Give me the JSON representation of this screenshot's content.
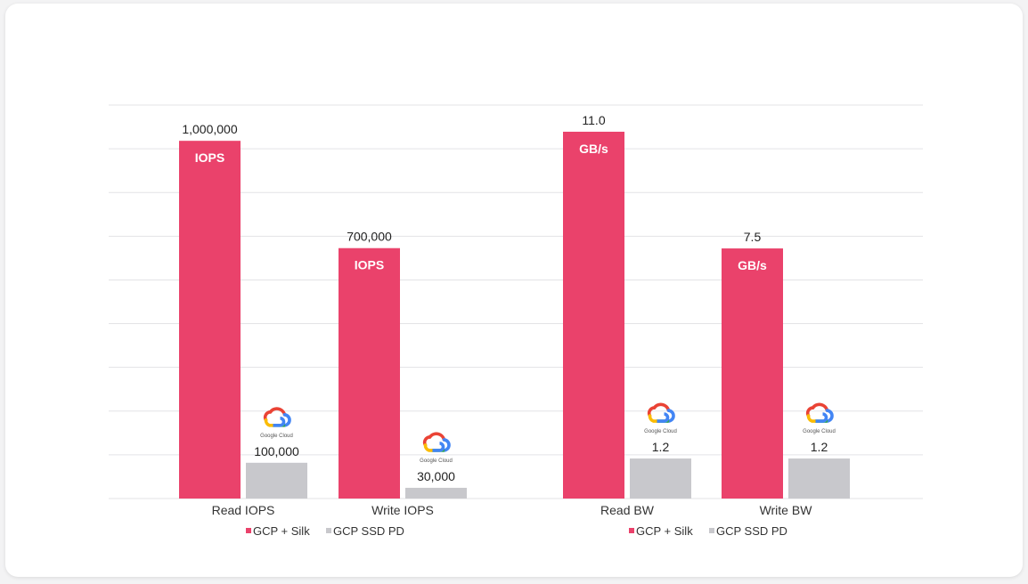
{
  "chart_data": [
    {
      "type": "bar",
      "categories": [
        "Read IOPS",
        "Write IOPS"
      ],
      "series": [
        {
          "name": "GCP + Silk",
          "values": [
            1000000,
            700000
          ],
          "value_labels": [
            "1,000,000",
            "700,000"
          ],
          "inner_label": "IOPS"
        },
        {
          "name": "GCP SSD PD",
          "values": [
            100000,
            30000
          ],
          "value_labels": [
            "100,000",
            "30,000"
          ]
        }
      ],
      "ylim": [
        0,
        1100000
      ]
    },
    {
      "type": "bar",
      "categories": [
        "Read BW",
        "Write BW"
      ],
      "series": [
        {
          "name": "GCP + Silk",
          "values": [
            11.0,
            7.5
          ],
          "value_labels": [
            "11.0",
            "7.5"
          ],
          "inner_label": "GB/s"
        },
        {
          "name": "GCP SSD PD",
          "values": [
            1.2,
            1.2
          ],
          "value_labels": [
            "1.2",
            "1.2"
          ]
        }
      ],
      "ylim": [
        0,
        11.8
      ]
    }
  ],
  "logo_text": "Google Cloud",
  "colors": {
    "silk": "#ea426b",
    "ssd": "#c8c8cc",
    "grid": "#e3e3e6"
  },
  "grid": true
}
